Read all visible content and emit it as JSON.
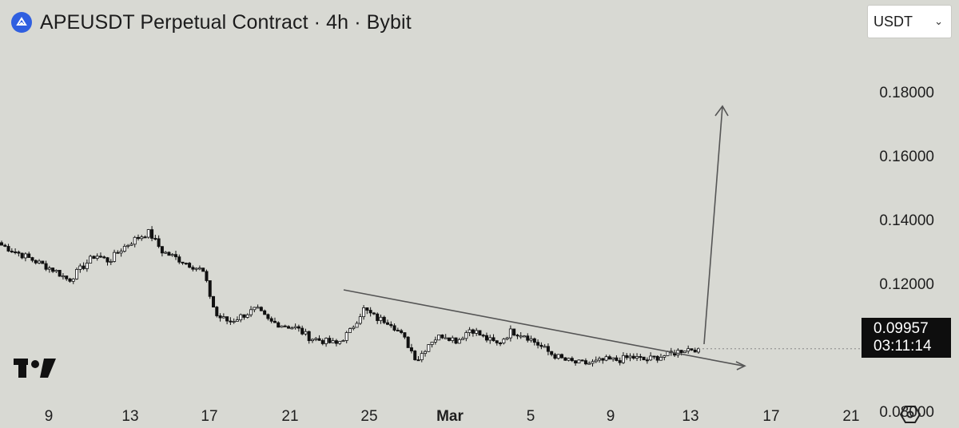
{
  "header": {
    "title": "APEUSDT Perpetual Contract · 4h · Bybit",
    "currency": "USDT",
    "currency_chevron": "⌄"
  },
  "icons": {
    "exchange_logo": "bybit-ape-icon",
    "brand_logo": "tradingview-icon",
    "settings": "settings-hexagon-icon"
  },
  "chart_data": {
    "type": "candlestick",
    "title": "APEUSDT Perpetual Contract · 4h · Bybit",
    "interval": "4h",
    "x_tick_labels": [
      "9",
      "13",
      "17",
      "21",
      "25",
      "Mar",
      "5",
      "9",
      "13",
      "17",
      "21"
    ],
    "y_tick_labels": [
      "0.18000",
      "0.16000",
      "0.14000",
      "0.12000",
      "0.08000"
    ],
    "ylim": [
      0.0775,
      0.2025
    ],
    "grid": false,
    "last_price": "0.09957",
    "countdown": "03:11:14",
    "close_series_approx": [
      0.132,
      0.13,
      0.128,
      0.126,
      0.124,
      0.121,
      0.125,
      0.129,
      0.127,
      0.131,
      0.134,
      0.136,
      0.13,
      0.128,
      0.126,
      0.124,
      0.11,
      0.108,
      0.11,
      0.112,
      0.108,
      0.107,
      0.106,
      0.103,
      0.102,
      0.101,
      0.105,
      0.112,
      0.109,
      0.108,
      0.103,
      0.096,
      0.102,
      0.104,
      0.102,
      0.106,
      0.103,
      0.101,
      0.105,
      0.104,
      0.101,
      0.098,
      0.096,
      0.095,
      0.095,
      0.096,
      0.096,
      0.097,
      0.096,
      0.097,
      0.098,
      0.0995,
      0.0996
    ],
    "trendline": {
      "from": [
        "Feb 23",
        0.118
      ],
      "to": [
        "Mar 15",
        0.094
      ]
    },
    "projection_arrows": [
      {
        "from": [
          "Mar 13",
          0.101
        ],
        "to": [
          "Mar 14",
          0.175
        ]
      },
      {
        "from": [
          "Mar 13",
          0.0985
        ],
        "to": [
          "Mar 15",
          0.094
        ]
      }
    ],
    "colors": {
      "background": "#d8d9d3",
      "candle_body_down": "#111111",
      "candle_body_up": "#ffffff",
      "lines": "#555555",
      "price_box": "#0e0e0e"
    }
  }
}
